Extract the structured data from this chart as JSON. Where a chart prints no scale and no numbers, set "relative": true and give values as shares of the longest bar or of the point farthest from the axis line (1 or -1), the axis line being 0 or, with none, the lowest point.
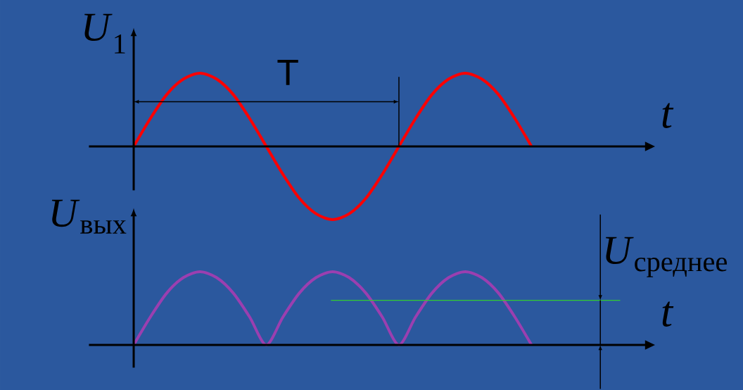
{
  "chart_data": [
    {
      "type": "line",
      "relative": true,
      "ylabel": "*U*$_{1}$",
      "xlabel": "t",
      "color": "#ff0000",
      "annotations": [
        "T"
      ],
      "categories": [
        null,
        null,
        null,
        null,
        null,
        null,
        null,
        null,
        null,
        null,
        null,
        null,
        null,
        null,
        null,
        null,
        null,
        null,
        null,
        null,
        null,
        null,
        null,
        null,
        null
      ],
      "values": [
        0,
        0.38,
        0.71,
        0.92,
        1,
        0.92,
        0.71,
        0.38,
        0,
        -0.38,
        -0.71,
        -0.92,
        -1,
        -0.92,
        -0.71,
        -0.38,
        0,
        0.38,
        0.71,
        0.92,
        1,
        0.92,
        0.71,
        0.38,
        0
      ]
    },
    {
      "type": "line",
      "relative": true,
      "ylabel": "*U*$_{вых}$",
      "xlabel": "t",
      "color": "#9b3fb0",
      "categories": [
        null,
        null,
        null,
        null,
        null,
        null,
        null,
        null,
        null,
        null,
        null,
        null,
        null,
        null,
        null,
        null,
        null,
        null,
        null,
        null,
        null,
        null,
        null,
        null,
        null
      ],
      "values": [
        0,
        0.38,
        0.71,
        0.92,
        1,
        0.92,
        0.71,
        0.38,
        0,
        0.38,
        0.71,
        0.92,
        1,
        0.92,
        0.71,
        0.38,
        0,
        0.38,
        0.71,
        0.92,
        1,
        0.92,
        0.71,
        0.38,
        0
      ],
      "ref_lines": [
        {
          "axis": "y",
          "value": 0.61,
          "label": "*U*$_{среднее}$",
          "color": "#33cc33"
        }
      ]
    }
  ]
}
